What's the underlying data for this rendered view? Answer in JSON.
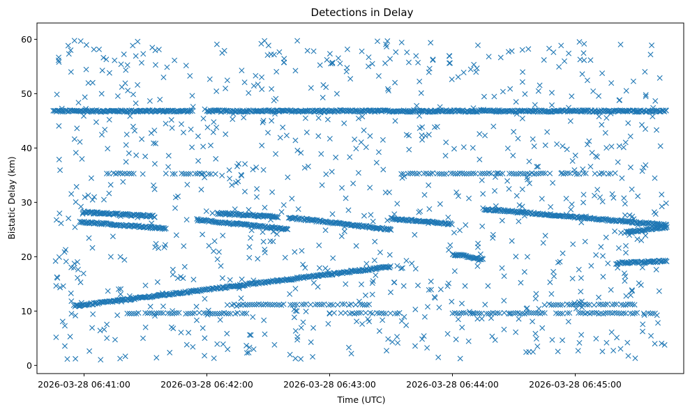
{
  "chart_data": {
    "type": "scatter",
    "title": "Detections in Delay",
    "xlabel": "Time (UTC)",
    "ylabel": "Bistatic Delay (km)",
    "marker": "x",
    "color": "#1f77b4",
    "grid": false,
    "legend": "none",
    "x_start": "2026-03-28 06:40:45",
    "x_end": "2026-03-28 06:45:45",
    "xlim": [
      "2026-03-28 06:40:37",
      "2026-03-28 06:45:53"
    ],
    "ylim": [
      -1.5,
      63
    ],
    "x_ticks": [
      "2026-03-28 06:41:00",
      "2026-03-28 06:42:00",
      "2026-03-28 06:43:00",
      "2026-03-28 06:44:00",
      "2026-03-28 06:45:00"
    ],
    "y_ticks": [
      0,
      10,
      20,
      30,
      40,
      50,
      60
    ],
    "tracks": [
      {
        "name": "",
        "x_start": "2026-03-28 06:40:45",
        "x_end": "2026-03-28 06:41:53",
        "y_start": 46.8,
        "y_end": 46.8
      },
      {
        "name": "",
        "x_start": "2026-03-28 06:42:00",
        "x_end": "2026-03-28 06:45:45",
        "y_start": 46.8,
        "y_end": 46.8
      },
      {
        "name": "",
        "x_start": "2026-03-28 06:40:55",
        "x_end": "2026-03-28 06:43:30",
        "y_start": 10.9,
        "y_end": 18.2
      },
      {
        "name": "",
        "x_start": "2026-03-28 06:40:58",
        "x_end": "2026-03-28 06:41:40",
        "y_start": 26.4,
        "y_end": 25.2
      },
      {
        "name": "",
        "x_start": "2026-03-28 06:41:00",
        "x_end": "2026-03-28 06:41:35",
        "y_start": 28.2,
        "y_end": 27.4
      },
      {
        "name": "",
        "x_start": "2026-03-28 06:41:55",
        "x_end": "2026-03-28 06:42:40",
        "y_start": 26.8,
        "y_end": 25.0
      },
      {
        "name": "",
        "x_start": "2026-03-28 06:42:05",
        "x_end": "2026-03-28 06:42:35",
        "y_start": 28.0,
        "y_end": 27.3
      },
      {
        "name": "",
        "x_start": "2026-03-28 06:42:40",
        "x_end": "2026-03-28 06:43:30",
        "y_start": 27.2,
        "y_end": 25.0
      },
      {
        "name": "",
        "x_start": "2026-03-28 06:43:30",
        "x_end": "2026-03-28 06:44:00",
        "y_start": 27.0,
        "y_end": 26.0
      },
      {
        "name": "",
        "x_start": "2026-03-28 06:44:15",
        "x_end": "2026-03-28 06:45:45",
        "y_start": 28.8,
        "y_end": 25.8
      },
      {
        "name": "",
        "x_start": "2026-03-28 06:44:00",
        "x_end": "2026-03-28 06:44:15",
        "y_start": 20.5,
        "y_end": 19.5
      },
      {
        "name": "",
        "x_start": "2026-03-28 06:45:20",
        "x_end": "2026-03-28 06:45:45",
        "y_start": 18.8,
        "y_end": 19.2
      },
      {
        "name": "",
        "x_start": "2026-03-28 06:45:25",
        "x_end": "2026-03-28 06:45:45",
        "y_start": 24.5,
        "y_end": 25.5
      }
    ],
    "constant_bands": [
      {
        "y": 35.3,
        "segments": [
          [
            "2026-03-28 06:41:10",
            "2026-03-28 06:41:30"
          ],
          [
            "2026-03-28 06:41:40",
            "2026-03-28 06:42:05"
          ],
          [
            "2026-03-28 06:43:35",
            "2026-03-28 06:45:20"
          ]
        ]
      },
      {
        "y": 9.6,
        "segments": [
          [
            "2026-03-28 06:41:20",
            "2026-03-28 06:42:20"
          ],
          [
            "2026-03-28 06:43:00",
            "2026-03-28 06:43:35"
          ],
          [
            "2026-03-28 06:44:00",
            "2026-03-28 06:45:40"
          ]
        ]
      },
      {
        "y": 11.2,
        "segments": [
          [
            "2026-03-28 06:42:10",
            "2026-03-28 06:43:20"
          ],
          [
            "2026-03-28 06:44:45",
            "2026-03-28 06:45:30"
          ]
        ]
      }
    ],
    "noise_points": 900
  }
}
